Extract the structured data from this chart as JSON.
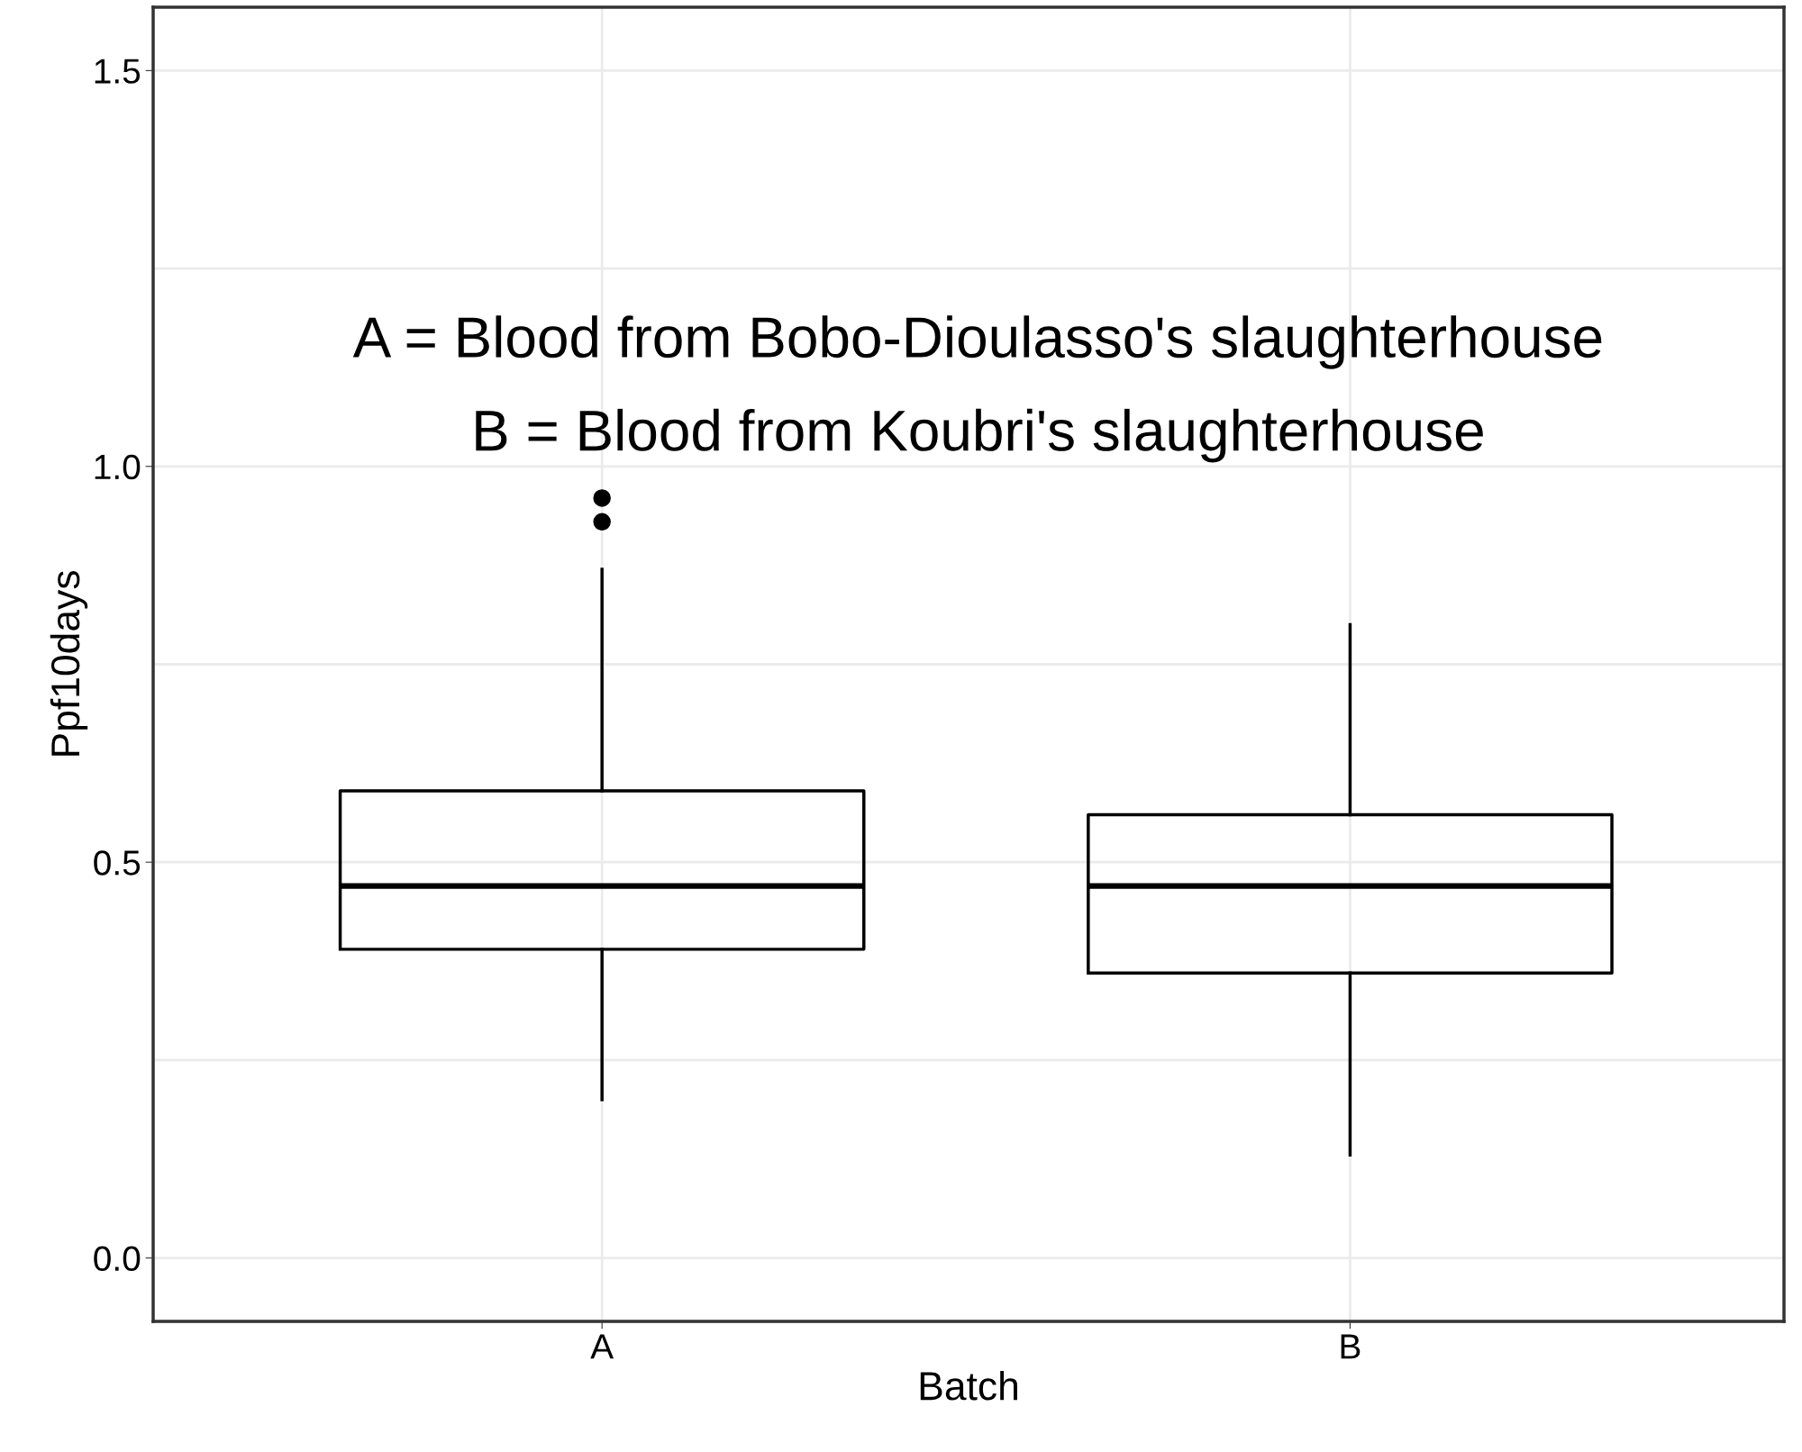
{
  "chart_data": {
    "type": "box",
    "xlabel": "Batch",
    "ylabel": "Ppf10days",
    "categories": [
      "A",
      "B"
    ],
    "boxes": [
      {
        "low": 0.2,
        "q1": 0.39,
        "median": 0.47,
        "q3": 0.59,
        "high": 0.87,
        "outliers": [
          0.93,
          0.96
        ]
      },
      {
        "low": 0.13,
        "q1": 0.36,
        "median": 0.47,
        "q3": 0.56,
        "high": 0.8
      }
    ],
    "ylim": [
      -0.08,
      1.58
    ],
    "yticks": [
      {
        "value": 0,
        "label": "0.0"
      },
      {
        "value": 0.25,
        "label": null
      },
      0.5,
      {
        "value": 0.75,
        "label": null
      },
      {
        "value": 1,
        "label": "1.0"
      },
      {
        "value": 1.25,
        "label": null
      },
      1.5
    ],
    "grid": true,
    "annotations": [
      "A = Blood from Bobo-Dioulasso's slaughterhouse",
      "B = Blood from Koubri's slaughterhouse"
    ]
  }
}
